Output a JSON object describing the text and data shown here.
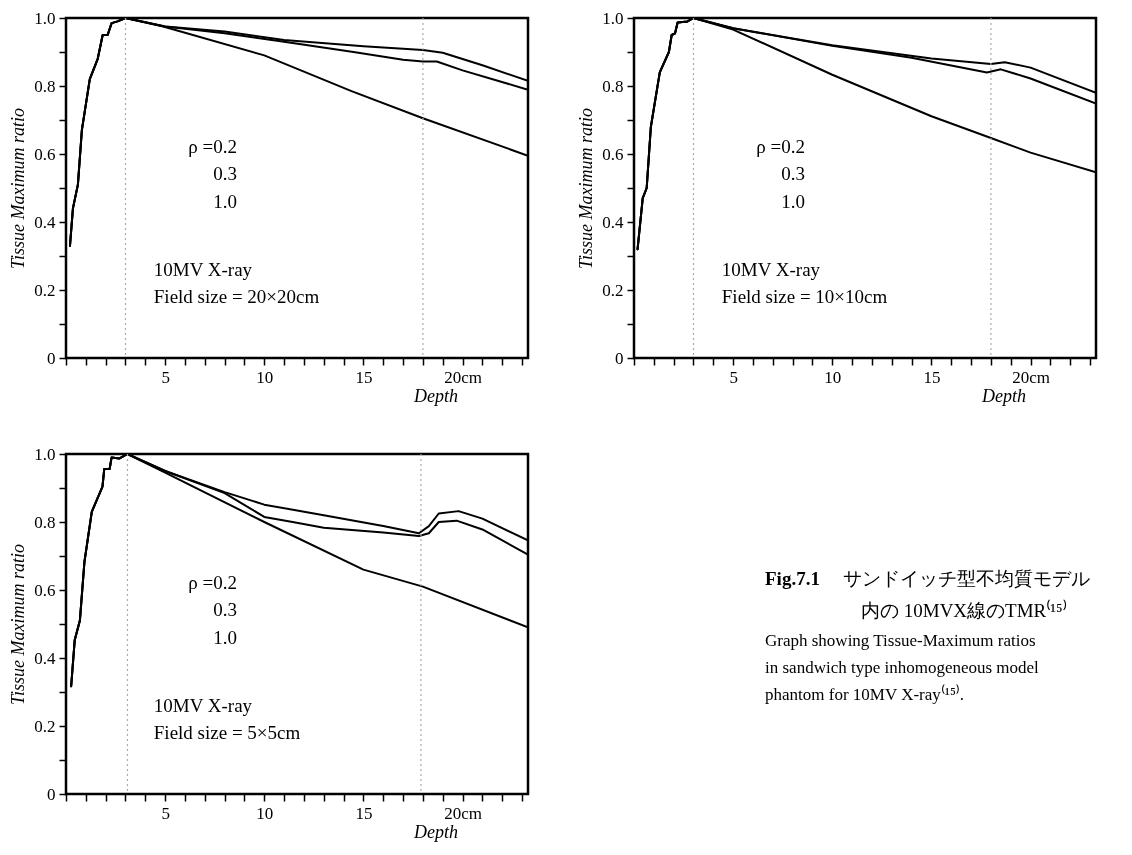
{
  "chart_data": [
    {
      "type": "line",
      "xlabel": "Depth",
      "ylabel": "Tissue Maximum ratio",
      "xlim": [
        0,
        23.3
      ],
      "ylim": [
        0,
        1
      ],
      "xticks": [
        {
          "value": 0,
          "label": null
        },
        {
          "value": 1,
          "label": null
        },
        {
          "value": 2,
          "label": null
        },
        {
          "value": 3,
          "label": null
        },
        {
          "value": 4,
          "label": null
        },
        5,
        {
          "value": 6,
          "label": null
        },
        {
          "value": 7,
          "label": null
        },
        {
          "value": 8,
          "label": null
        },
        {
          "value": 9,
          "label": null
        },
        10,
        {
          "value": 11,
          "label": null
        },
        {
          "value": 12,
          "label": null
        },
        {
          "value": 13,
          "label": null
        },
        {
          "value": 14,
          "label": null
        },
        15,
        {
          "value": 16,
          "label": null
        },
        {
          "value": 17,
          "label": null
        },
        {
          "value": 18,
          "label": null
        },
        {
          "value": 19,
          "label": null
        },
        {
          "value": 20,
          "label": "20cm"
        },
        {
          "value": 21,
          "label": null
        },
        {
          "value": 22,
          "label": null
        },
        {
          "value": 23,
          "label": null
        }
      ],
      "yticks": [
        0,
        {
          "value": 0.1,
          "label": null
        },
        0.2,
        {
          "value": 0.3,
          "label": null
        },
        0.4,
        {
          "value": 0.5,
          "label": null
        },
        0.6,
        {
          "value": 0.7,
          "label": null
        },
        0.8,
        {
          "value": 0.9,
          "label": null
        },
        {
          "value": 1,
          "label": "1.0"
        }
      ],
      "series": [
        {
          "color": "#000000",
          "x": [
            0.2,
            0.35,
            0.6,
            0.8,
            1.2,
            1.6,
            1.85,
            2.1,
            2.3,
            2.6,
            3,
            5,
            8,
            11,
            15,
            18,
            19,
            21,
            23.3
          ],
          "values": [
            0.33,
            0.44,
            0.51,
            0.67,
            0.82,
            0.88,
            0.95,
            0.95,
            0.985,
            0.99,
            1,
            0.975,
            0.96,
            0.935,
            0.917,
            0.906,
            0.898,
            0.861,
            0.815
          ]
        },
        {
          "color": "#000000",
          "x": [
            0.2,
            0.35,
            0.6,
            0.8,
            1.2,
            1.6,
            1.85,
            2.1,
            2.3,
            2.6,
            3,
            5,
            8,
            11,
            14.5,
            17,
            18,
            18.7,
            20,
            23.3
          ],
          "values": [
            0.33,
            0.44,
            0.51,
            0.67,
            0.82,
            0.88,
            0.95,
            0.95,
            0.985,
            0.99,
            1,
            0.975,
            0.955,
            0.93,
            0.9,
            0.877,
            0.872,
            0.872,
            0.846,
            0.789
          ]
        },
        {
          "color": "#000000",
          "x": [
            0.2,
            0.35,
            0.6,
            0.8,
            1.2,
            1.6,
            1.85,
            2.1,
            2.3,
            2.6,
            3,
            4.9,
            10,
            14.4,
            18,
            23.3
          ],
          "values": [
            0.33,
            0.44,
            0.51,
            0.67,
            0.82,
            0.88,
            0.95,
            0.95,
            0.985,
            0.99,
            1,
            0.975,
            0.89,
            0.785,
            0.705,
            0.595
          ]
        }
      ],
      "ref_lines": [
        {
          "axis": "x",
          "value": 3,
          "color": "#aaaaaa",
          "line_style": "dotted"
        },
        {
          "axis": "x",
          "value": 18,
          "color": "#aaaaaa",
          "line_style": "dotted"
        }
      ],
      "annotations": [
        "ρ =0.2",
        "0.3",
        "1.0",
        "10MV X-ray",
        "Field size = 20×20cm"
      ]
    },
    {
      "type": "line",
      "xlabel": "Depth",
      "ylabel": "Tissue Maximum ratio",
      "xlim": [
        0,
        23.3
      ],
      "ylim": [
        0,
        1
      ],
      "xticks": [
        {
          "value": 0,
          "label": null
        },
        {
          "value": 1,
          "label": null
        },
        {
          "value": 2,
          "label": null
        },
        {
          "value": 3,
          "label": null
        },
        {
          "value": 4,
          "label": null
        },
        5,
        {
          "value": 6,
          "label": null
        },
        {
          "value": 7,
          "label": null
        },
        {
          "value": 8,
          "label": null
        },
        {
          "value": 9,
          "label": null
        },
        10,
        {
          "value": 11,
          "label": null
        },
        {
          "value": 12,
          "label": null
        },
        {
          "value": 13,
          "label": null
        },
        {
          "value": 14,
          "label": null
        },
        15,
        {
          "value": 16,
          "label": null
        },
        {
          "value": 17,
          "label": null
        },
        {
          "value": 18,
          "label": null
        },
        {
          "value": 19,
          "label": null
        },
        {
          "value": 20,
          "label": "20cm"
        },
        {
          "value": 21,
          "label": null
        },
        {
          "value": 22,
          "label": null
        },
        {
          "value": 23,
          "label": null
        }
      ],
      "yticks": [
        0,
        {
          "value": 0.1,
          "label": null
        },
        0.2,
        {
          "value": 0.3,
          "label": null
        },
        0.4,
        {
          "value": 0.5,
          "label": null
        },
        0.6,
        {
          "value": 0.7,
          "label": null
        },
        0.8,
        {
          "value": 0.9,
          "label": null
        },
        {
          "value": 1,
          "label": "1.0"
        }
      ],
      "series": [
        {
          "color": "#000000",
          "x": [
            0.18,
            0.44,
            0.64,
            0.85,
            1.3,
            1.76,
            1.9,
            2.07,
            2.2,
            2.7,
            3,
            5,
            10,
            15,
            18,
            18.7,
            20,
            23.3
          ],
          "values": [
            0.32,
            0.47,
            0.5,
            0.68,
            0.84,
            0.9,
            0.95,
            0.955,
            0.987,
            0.99,
            1,
            0.97,
            0.92,
            0.881,
            0.865,
            0.87,
            0.854,
            0.78
          ]
        },
        {
          "color": "#000000",
          "x": [
            0.18,
            0.44,
            0.64,
            0.85,
            1.3,
            1.76,
            1.9,
            2.07,
            2.2,
            2.7,
            3,
            5,
            10,
            14,
            17.8,
            18.5,
            20,
            23.3
          ],
          "values": [
            0.32,
            0.47,
            0.5,
            0.68,
            0.84,
            0.9,
            0.95,
            0.955,
            0.987,
            0.99,
            1,
            0.97,
            0.918,
            0.883,
            0.84,
            0.849,
            0.822,
            0.748
          ]
        },
        {
          "color": "#000000",
          "x": [
            0.18,
            0.44,
            0.64,
            0.85,
            1.3,
            1.76,
            1.9,
            2.07,
            2.2,
            2.7,
            3,
            5,
            10,
            15,
            18,
            20,
            23.3
          ],
          "values": [
            0.32,
            0.47,
            0.5,
            0.68,
            0.84,
            0.9,
            0.95,
            0.955,
            0.987,
            0.99,
            1,
            0.966,
            0.833,
            0.711,
            0.647,
            0.604,
            0.546
          ]
        }
      ],
      "ref_lines": [
        {
          "axis": "x",
          "value": 3,
          "color": "#aaaaaa",
          "line_style": "dotted"
        },
        {
          "axis": "x",
          "value": 18,
          "color": "#aaaaaa",
          "line_style": "dotted"
        }
      ],
      "annotations": [
        "ρ =0.2",
        "0.3",
        "1.0",
        "10MV X-ray",
        "Field size = 10×10cm"
      ]
    },
    {
      "type": "line",
      "xlabel": "Depth",
      "ylabel": "Tissue Maximum ratio",
      "xlim": [
        0,
        23.3
      ],
      "ylim": [
        0,
        1
      ],
      "xticks": [
        {
          "value": 0,
          "label": null
        },
        {
          "value": 1,
          "label": null
        },
        {
          "value": 2,
          "label": null
        },
        {
          "value": 3,
          "label": null
        },
        {
          "value": 4,
          "label": null
        },
        5,
        {
          "value": 6,
          "label": null
        },
        {
          "value": 7,
          "label": null
        },
        {
          "value": 8,
          "label": null
        },
        {
          "value": 9,
          "label": null
        },
        10,
        {
          "value": 11,
          "label": null
        },
        {
          "value": 12,
          "label": null
        },
        {
          "value": 13,
          "label": null
        },
        {
          "value": 14,
          "label": null
        },
        15,
        {
          "value": 16,
          "label": null
        },
        {
          "value": 17,
          "label": null
        },
        {
          "value": 18,
          "label": null
        },
        {
          "value": 19,
          "label": null
        },
        {
          "value": 20,
          "label": "20cm"
        },
        {
          "value": 21,
          "label": null
        },
        {
          "value": 22,
          "label": null
        },
        {
          "value": 23,
          "label": null
        }
      ],
      "yticks": [
        0,
        {
          "value": 0.1,
          "label": null
        },
        0.2,
        {
          "value": 0.3,
          "label": null
        },
        0.4,
        {
          "value": 0.5,
          "label": null
        },
        0.6,
        {
          "value": 0.7,
          "label": null
        },
        0.8,
        {
          "value": 0.9,
          "label": null
        },
        {
          "value": 1,
          "label": "1.0"
        }
      ],
      "series": [
        {
          "color": "#000000",
          "x": [
            0.26,
            0.44,
            0.7,
            0.93,
            1.3,
            1.84,
            1.93,
            2.2,
            2.3,
            2.7,
            3.1,
            5,
            8,
            10,
            13,
            16,
            17.8,
            18.3,
            18.8,
            19.8,
            21,
            23.3
          ],
          "values": [
            0.317,
            0.453,
            0.51,
            0.683,
            0.83,
            0.904,
            0.956,
            0.956,
            0.99,
            0.987,
            1,
            0.95,
            0.888,
            0.851,
            0.82,
            0.788,
            0.767,
            0.788,
            0.825,
            0.832,
            0.81,
            0.746
          ]
        },
        {
          "color": "#000000",
          "x": [
            0.26,
            0.44,
            0.7,
            0.93,
            1.3,
            1.84,
            1.93,
            2.2,
            2.3,
            2.7,
            3.1,
            5,
            8,
            10,
            11.5,
            13,
            16,
            17.8,
            18.3,
            18.8,
            19.7,
            21,
            23.3
          ],
          "values": [
            0.317,
            0.453,
            0.51,
            0.683,
            0.83,
            0.904,
            0.956,
            0.956,
            0.99,
            0.987,
            1,
            0.95,
            0.885,
            0.815,
            0.799,
            0.783,
            0.769,
            0.759,
            0.767,
            0.8,
            0.804,
            0.778,
            0.704
          ]
        },
        {
          "color": "#000000",
          "x": [
            0.26,
            0.44,
            0.7,
            0.93,
            1.3,
            1.84,
            1.93,
            2.2,
            2.3,
            2.7,
            3.1,
            5,
            10,
            15,
            18,
            23.3
          ],
          "values": [
            0.317,
            0.453,
            0.51,
            0.683,
            0.83,
            0.904,
            0.956,
            0.956,
            0.99,
            0.987,
            1,
            0.945,
            0.8,
            0.66,
            0.61,
            0.49
          ]
        }
      ],
      "ref_lines": [
        {
          "axis": "x",
          "value": 3.1,
          "color": "#aaaaaa",
          "line_style": "dotted"
        },
        {
          "axis": "x",
          "value": 17.9,
          "color": "#aaaaaa",
          "line_style": "dotted"
        }
      ],
      "annotations": [
        "ρ =0.2",
        "0.3",
        "1.0",
        "10MV X-ray",
        "Field size = 5×5cm"
      ]
    },
    {
      "type": "other",
      "title": "Fig.7.1",
      "annotations": [
        "サンドイッチ型不均質モデル",
        "内の 10MVX線のTMR⁽¹⁵⁾",
        "Graph showing Tissue-Maximum ratios in sandwich type inhomogeneous model phantom for 10MV X-ray⁽¹⁵⁾."
      ]
    }
  ]
}
